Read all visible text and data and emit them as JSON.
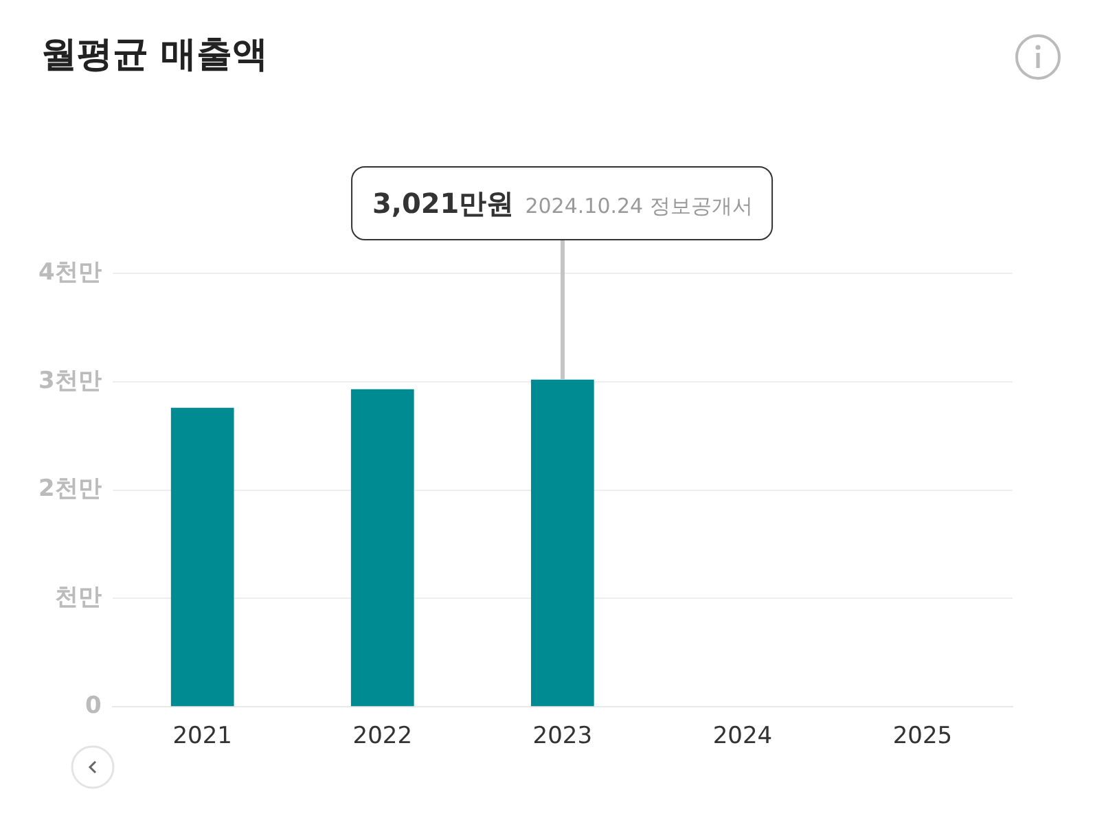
{
  "chart_data": {
    "type": "bar",
    "title": "월평균 매출액",
    "categories": [
      "2021",
      "2022",
      "2023",
      "2024",
      "2025"
    ],
    "values": [
      2.76,
      2.93,
      3.02,
      null,
      null
    ],
    "color": "#008b92",
    "ylim": [
      0,
      4
    ],
    "yticks": [
      0,
      {
        "value": 1,
        "label": "천만"
      },
      {
        "value": 2,
        "label": "2천만"
      },
      {
        "value": 3,
        "label": "3천만"
      },
      {
        "value": 4,
        "label": "4천만"
      }
    ],
    "grid": "y",
    "legend": false,
    "annotations": [
      "3,021만원",
      "2024.10.24 정보공개서"
    ]
  }
}
